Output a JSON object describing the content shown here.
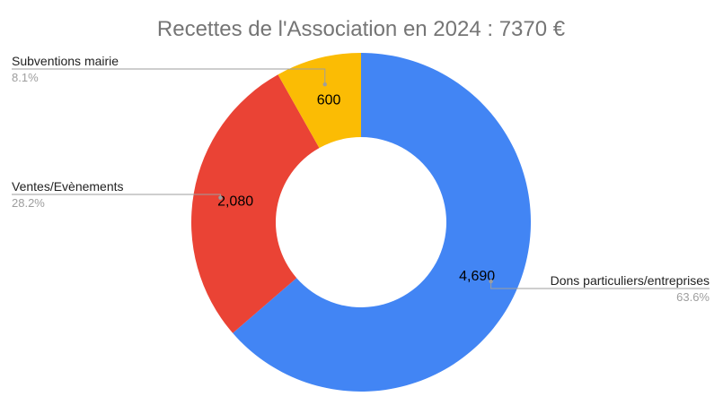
{
  "chart_data": {
    "type": "pie",
    "donut": true,
    "title": "Recettes de l'Association en 2024 : 7370 €",
    "slices": [
      {
        "name": "Dons particuliers/entreprises",
        "value": 4690,
        "value_label": "4,690",
        "percent_label": "63.6%",
        "color": "#4285f4"
      },
      {
        "name": "Ventes/Evènements",
        "value": 2080,
        "value_label": "2,080",
        "percent_label": "28.2%",
        "color": "#ea4335"
      },
      {
        "name": "Subventions mairie",
        "value": 600,
        "value_label": "600",
        "percent_label": "8.1%",
        "color": "#fbbc04"
      }
    ],
    "legend": "none"
  }
}
